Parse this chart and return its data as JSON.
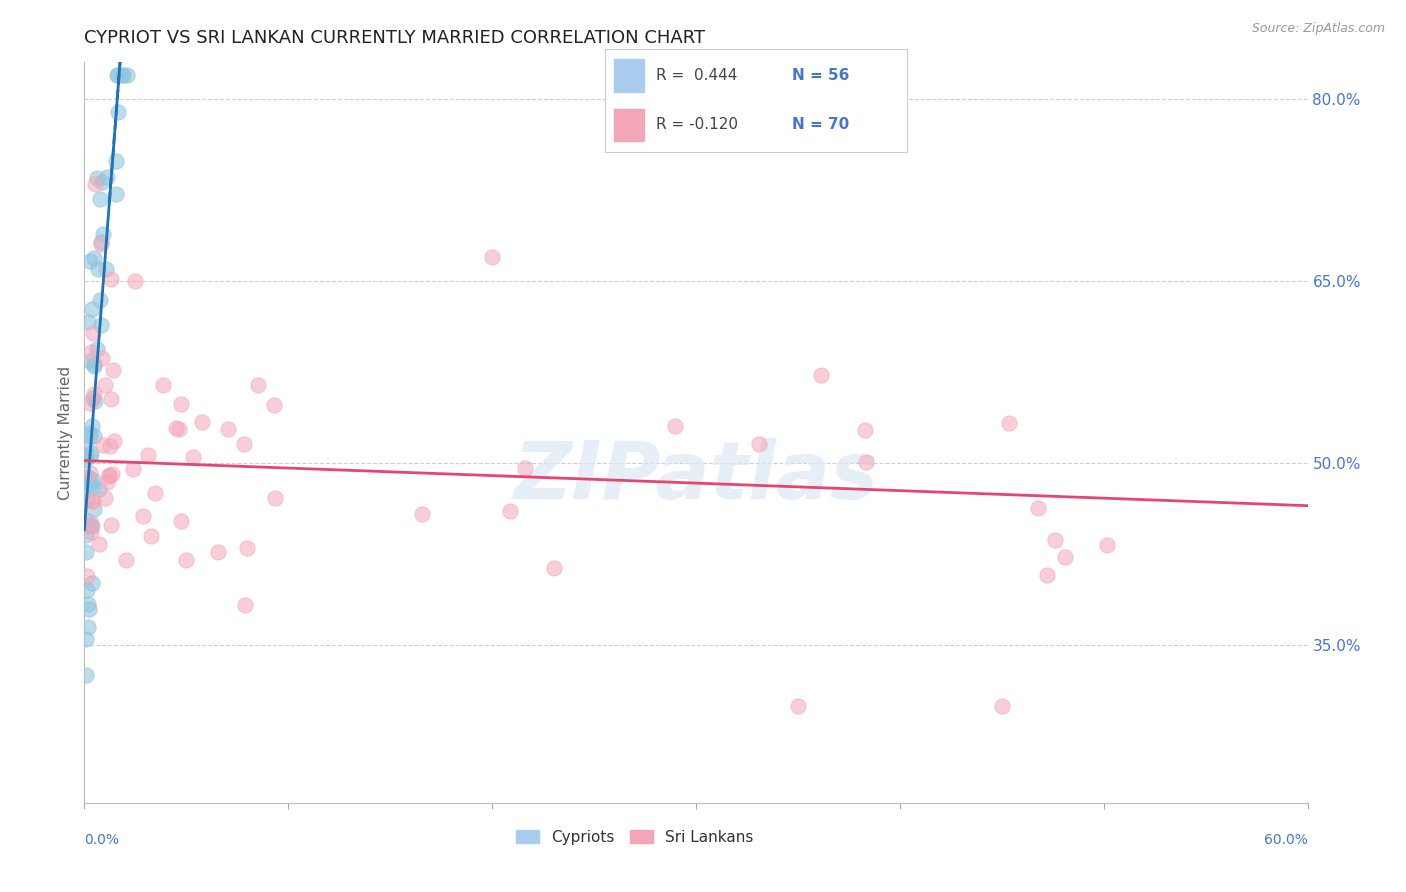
{
  "title": "CYPRIOT VS SRI LANKAN CURRENTLY MARRIED CORRELATION CHART",
  "source": "Source: ZipAtlas.com",
  "ylabel": "Currently Married",
  "watermark": "ZIPatlas",
  "cypriot_color": "#92c5de",
  "srilankan_color": "#f4a6b8",
  "cypriot_line_color": "#2171b5",
  "srilankan_line_color": "#e8446e",
  "background_color": "#ffffff",
  "xlim": [
    0.0,
    0.6
  ],
  "ylim": [
    0.22,
    0.83
  ],
  "yticks": [
    0.35,
    0.5,
    0.65,
    0.8
  ],
  "cypriot_slope": 22.0,
  "cypriot_intercept": 0.445,
  "srilankan_slope": -0.062,
  "srilankan_intercept": 0.502
}
